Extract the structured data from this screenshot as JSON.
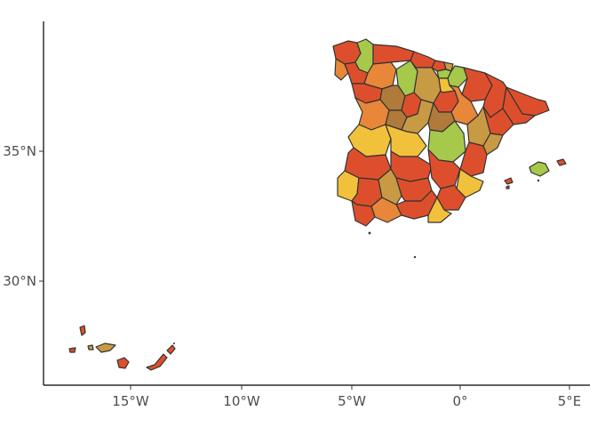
{
  "map": {
    "x_ticks": [
      {
        "value": -15,
        "label": "15°W"
      },
      {
        "value": -10,
        "label": "10°W"
      },
      {
        "value": -5,
        "label": "5°W"
      },
      {
        "value": 0,
        "label": "0°"
      },
      {
        "value": 5,
        "label": "5°E"
      }
    ],
    "y_ticks": [
      {
        "value": 35,
        "label": "35°N"
      },
      {
        "value": 30,
        "label": "30°N"
      }
    ],
    "palette": {
      "red": "#dd4f2c",
      "orange": "#e8873a",
      "tan": "#c99a44",
      "yellow": "#f2c13b",
      "green": "#a6c94c",
      "brown": "#b07a3a",
      "border": "#333333"
    }
  }
}
